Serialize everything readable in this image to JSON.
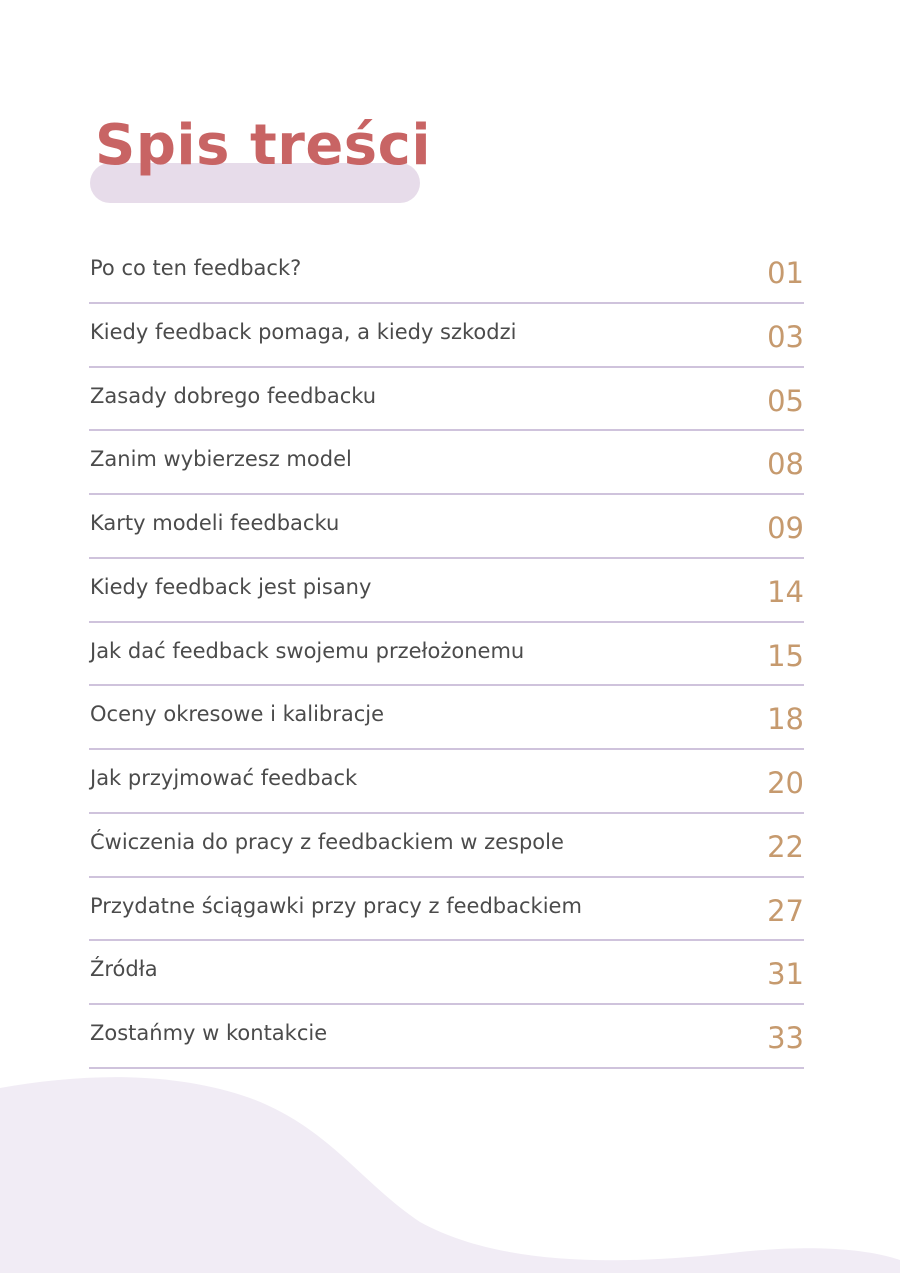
{
  "header": {
    "title": "Spis treści"
  },
  "colors": {
    "title": "#c86464",
    "title_highlight": "#e7dcea",
    "page_number": "#c69a6e",
    "divider": "#cfc3dc",
    "wave": "#f1ecf5"
  },
  "toc": {
    "items": [
      {
        "label": "Po co ten feedback?",
        "page": "01"
      },
      {
        "label": "Kiedy feedback pomaga, a kiedy szkodzi",
        "page": "03"
      },
      {
        "label": "Zasady dobrego feedbacku",
        "page": "05"
      },
      {
        "label": "Zanim wybierzesz model",
        "page": "08"
      },
      {
        "label": "Karty modeli feedbacku",
        "page": "09"
      },
      {
        "label": "Kiedy feedback jest pisany",
        "page": "14"
      },
      {
        "label": "Jak dać feedback swojemu przełożonemu",
        "page": "15"
      },
      {
        "label": "Oceny okresowe i kalibracje",
        "page": "18"
      },
      {
        "label": "Jak przyjmować feedback",
        "page": "20"
      },
      {
        "label": "Ćwiczenia do pracy z feedbackiem w zespole",
        "page": "22"
      },
      {
        "label": "Przydatne ściągawki przy pracy z feedbackiem",
        "page": "27"
      },
      {
        "label": "Źródła",
        "page": "31"
      },
      {
        "label": "Zostańmy w kontakcie",
        "page": "33"
      }
    ]
  }
}
